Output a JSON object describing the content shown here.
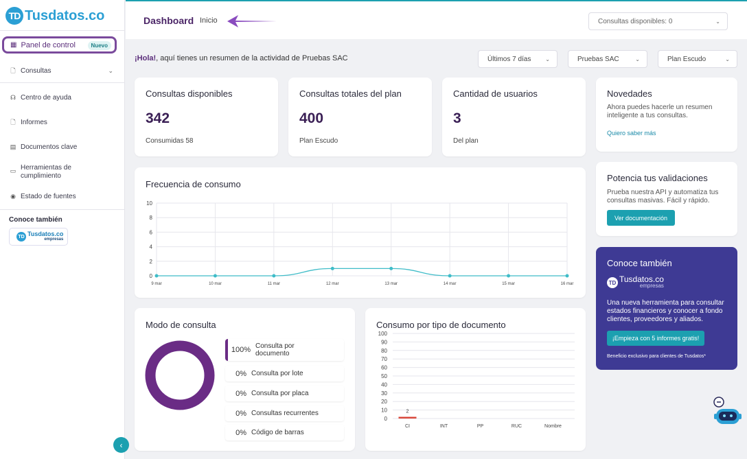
{
  "sidebar": {
    "logo_letters": "TD",
    "logo_text": "Tusdatos.co",
    "active_item": "Panel de control",
    "active_badge": "Nuevo",
    "items": [
      {
        "label": "Consultas",
        "icon": "search-doc-icon"
      },
      {
        "label": "Centro de ayuda",
        "icon": "headset-icon"
      },
      {
        "label": "Informes",
        "icon": "report-icon"
      },
      {
        "label": "Documentos clave",
        "icon": "archive-icon"
      },
      {
        "label": "Herramientas de cumplimiento",
        "icon": "folder-icon"
      },
      {
        "label": "Estado de fuentes",
        "icon": "broadcast-icon"
      }
    ],
    "also_title": "Conoce también",
    "empresas_name": "Tusdatos.co",
    "empresas_sub": "empresas"
  },
  "header": {
    "title": "Dashboard",
    "breadcrumb": "Inicio",
    "credits": "Consultas disponibles: 0"
  },
  "greeting": {
    "hello": "¡Hola!",
    "text": ", aquí tienes un resumen de la actividad de Pruebas SAC"
  },
  "filters": [
    "Últimos 7 días",
    "Pruebas SAC",
    "Plan Escudo"
  ],
  "stats": [
    {
      "label": "Consultas disponibles",
      "value": "342",
      "sub": "Consumidas 58"
    },
    {
      "label": "Consultas totales del plan",
      "value": "400",
      "sub": "Plan Escudo"
    },
    {
      "label": "Cantidad de usuarios",
      "value": "3",
      "sub": "Del plan"
    }
  ],
  "news": {
    "title": "Novedades",
    "body": "Ahora puedes hacerle un resumen inteligente a tus consultas.",
    "link": "Quiero saber más"
  },
  "validations": {
    "title": "Potencia tus validaciones",
    "body": "Prueba nuestra API y automatiza tus consultas masivas. Fácil y rápido.",
    "button": "Ver documentación"
  },
  "promo": {
    "title": "Conoce también",
    "logo_text": "Tusdatos.co",
    "logo_sub": "empresas",
    "body": "Una nueva herramienta para consultar estados financieros y conocer a fondo clientes, proveedores y aliados.",
    "button": "¡Empieza con 5 informes gratis!",
    "footer": "Beneficio exclusivo para clientes de Tusdatos*"
  },
  "mode": {
    "title": "Modo de consulta",
    "rows": [
      {
        "pct": "100%",
        "label": "Consulta por documento"
      },
      {
        "pct": "0%",
        "label": "Consulta por lote"
      },
      {
        "pct": "0%",
        "label": "Consulta por placa"
      },
      {
        "pct": "0%",
        "label": "Consultas recurrentes"
      },
      {
        "pct": "0%",
        "label": "Código de barras"
      }
    ],
    "donut_color": "#6a2c85"
  },
  "chart_data": [
    {
      "type": "line",
      "title": "Frecuencia de consumo",
      "categories": [
        "9 mar",
        "10 mar",
        "11 mar",
        "12 mar",
        "13 mar",
        "14 mar",
        "15 mar",
        "16 mar"
      ],
      "values": [
        0,
        0,
        0,
        1,
        1,
        0,
        0,
        0
      ],
      "ylim": [
        0,
        10
      ],
      "yticks": [
        0,
        2,
        4,
        6,
        8,
        10
      ],
      "color": "#3fbcc8",
      "grid": true
    },
    {
      "type": "bar",
      "title": "Consumo por tipo de documento",
      "categories": [
        "CI",
        "INT",
        "PP",
        "RUC",
        "Nombre"
      ],
      "values": [
        2,
        0,
        0,
        0,
        0
      ],
      "data_labels": [
        "2",
        "",
        "",
        "",
        ""
      ],
      "ylim": [
        0,
        100
      ],
      "yticks": [
        0,
        10,
        20,
        30,
        40,
        50,
        60,
        70,
        80,
        90,
        100
      ],
      "color": "#d9483b",
      "grid": true
    }
  ]
}
